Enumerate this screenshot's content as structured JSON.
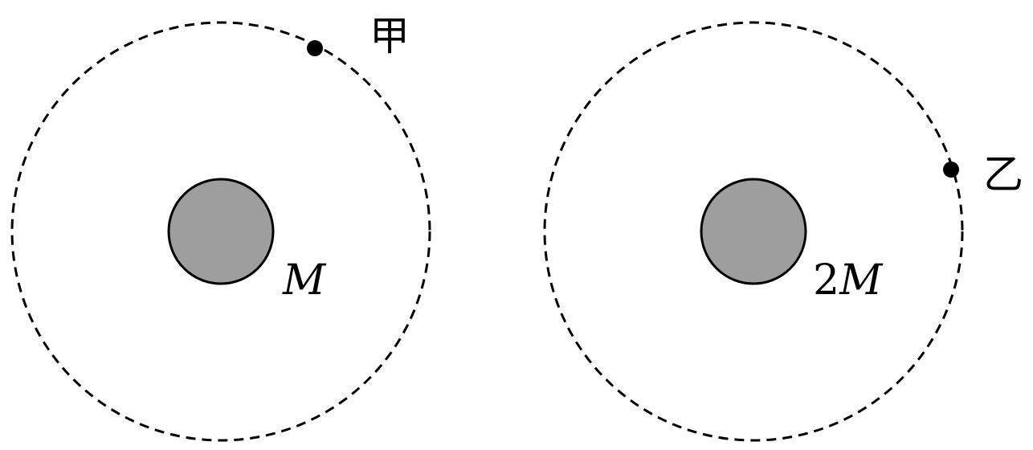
{
  "diagram": {
    "colors": {
      "planet_fill": "#9e9e9e",
      "stroke": "#000000",
      "satellite": "#000000"
    },
    "left_system": {
      "planet_mass_label": "M",
      "satellite_label": "甲"
    },
    "right_system": {
      "planet_mass_coefficient": "2",
      "planet_mass_symbol": "M",
      "satellite_label": "乙"
    }
  }
}
